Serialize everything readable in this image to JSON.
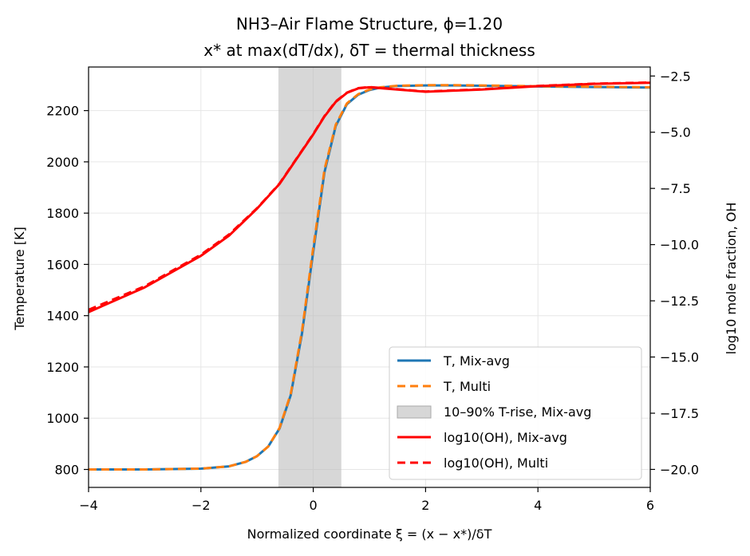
{
  "chart_data": {
    "type": "line",
    "title": "NH3–Air Flame Structure, ϕ=1.20",
    "subtitle": "x* at max(dT/dx), δT = thermal thickness",
    "xlabel": "Normalized coordinate ξ = (x − x*)/δT",
    "ylabel_left": "Temperature [K]",
    "ylabel_right": "log10 mole fraction, OH",
    "xlim": [
      -4,
      6
    ],
    "ylim_left": [
      730,
      2370
    ],
    "ylim_right": [
      -20.8,
      -2.1
    ],
    "grid": true,
    "legend_position": "lower right",
    "x_ticks": [
      -4,
      -2,
      0,
      2,
      4,
      6
    ],
    "x_tick_labels": [
      "−4",
      "−2",
      "0",
      "2",
      "4",
      "6"
    ],
    "y_left_ticks": [
      800,
      1000,
      1200,
      1400,
      1600,
      1800,
      2000,
      2200
    ],
    "y_left_tick_labels": [
      "800",
      "1000",
      "1200",
      "1400",
      "1600",
      "1800",
      "2000",
      "2200"
    ],
    "y_right_ticks": [
      -20.0,
      -17.5,
      -15.0,
      -12.5,
      -10.0,
      -7.5,
      -5.0,
      -2.5
    ],
    "y_right_tick_labels": [
      "−20.0",
      "−17.5",
      "−15.0",
      "−12.5",
      "−10.0",
      "−7.5",
      "−5.0",
      "−2.5"
    ],
    "shaded_region": {
      "x": [
        -0.62,
        0.5
      ],
      "label": "10–90% T-rise, Mix-avg",
      "color": "#bdbdbd"
    },
    "series": [
      {
        "name": "T, Mix-avg",
        "axis": "left",
        "color": "#1f77b4",
        "style": "solid",
        "x": [
          -4,
          -3,
          -2,
          -1.5,
          -1.2,
          -1.0,
          -0.8,
          -0.6,
          -0.4,
          -0.2,
          0,
          0.2,
          0.4,
          0.6,
          0.8,
          1.0,
          1.2,
          1.5,
          2.0,
          2.5,
          3.0,
          4.0,
          5.0,
          6.0
        ],
        "values": [
          800,
          800,
          803,
          812,
          830,
          852,
          890,
          960,
          1090,
          1330,
          1650,
          1960,
          2140,
          2225,
          2262,
          2280,
          2290,
          2296,
          2298,
          2298,
          2297,
          2294,
          2292,
          2290
        ]
      },
      {
        "name": "T, Multi",
        "axis": "left",
        "color": "#ff7f0e",
        "style": "dashed",
        "x": [
          -4,
          -3,
          -2,
          -1.5,
          -1.2,
          -1.0,
          -0.8,
          -0.6,
          -0.4,
          -0.2,
          0,
          0.2,
          0.4,
          0.6,
          0.8,
          1.0,
          1.2,
          1.5,
          2.0,
          2.5,
          3.0,
          4.0,
          5.0,
          6.0
        ],
        "values": [
          800,
          800,
          803,
          812,
          830,
          852,
          890,
          962,
          1095,
          1340,
          1665,
          1970,
          2145,
          2228,
          2264,
          2282,
          2291,
          2297,
          2299,
          2299,
          2298,
          2295,
          2293,
          2291
        ]
      },
      {
        "name": "log10(OH), Mix-avg",
        "axis": "right",
        "color": "#ff0000",
        "style": "solid",
        "x": [
          -4,
          -3,
          -2,
          -1.5,
          -1.0,
          -0.6,
          -0.3,
          0,
          0.2,
          0.4,
          0.6,
          0.8,
          1.0,
          1.5,
          2.0,
          3.0,
          4.0,
          5.0,
          6.0
        ],
        "values": [
          -13.0,
          -11.9,
          -10.5,
          -9.6,
          -8.4,
          -7.3,
          -6.2,
          -5.1,
          -4.3,
          -3.65,
          -3.25,
          -3.05,
          -3.0,
          -3.1,
          -3.2,
          -3.1,
          -2.95,
          -2.85,
          -2.8
        ]
      },
      {
        "name": "log10(OH), Multi",
        "axis": "right",
        "color": "#ff0000",
        "style": "dashed",
        "x": [
          -4,
          -3,
          -2,
          -1.5,
          -1.0,
          -0.6,
          -0.3,
          0,
          0.2,
          0.4,
          0.6,
          0.8,
          1.0,
          1.5,
          2.0,
          3.0,
          4.0,
          5.0,
          6.0
        ],
        "values": [
          -12.9,
          -11.85,
          -10.45,
          -9.55,
          -8.38,
          -7.28,
          -6.18,
          -5.08,
          -4.28,
          -3.63,
          -3.24,
          -3.04,
          -2.99,
          -3.09,
          -3.19,
          -3.09,
          -2.94,
          -2.84,
          -2.79
        ]
      }
    ],
    "legend": [
      {
        "label": "T, Mix-avg",
        "kind": "line",
        "color": "#1f77b4",
        "dash": "solid"
      },
      {
        "label": "T, Multi",
        "kind": "line",
        "color": "#ff7f0e",
        "dash": "dashed"
      },
      {
        "label": "10–90% T-rise, Mix-avg",
        "kind": "patch",
        "color": "#bdbdbd"
      },
      {
        "label": "log10(OH), Mix-avg",
        "kind": "line",
        "color": "#ff0000",
        "dash": "solid"
      },
      {
        "label": "log10(OH), Multi",
        "kind": "line",
        "color": "#ff0000",
        "dash": "dashed"
      }
    ]
  }
}
